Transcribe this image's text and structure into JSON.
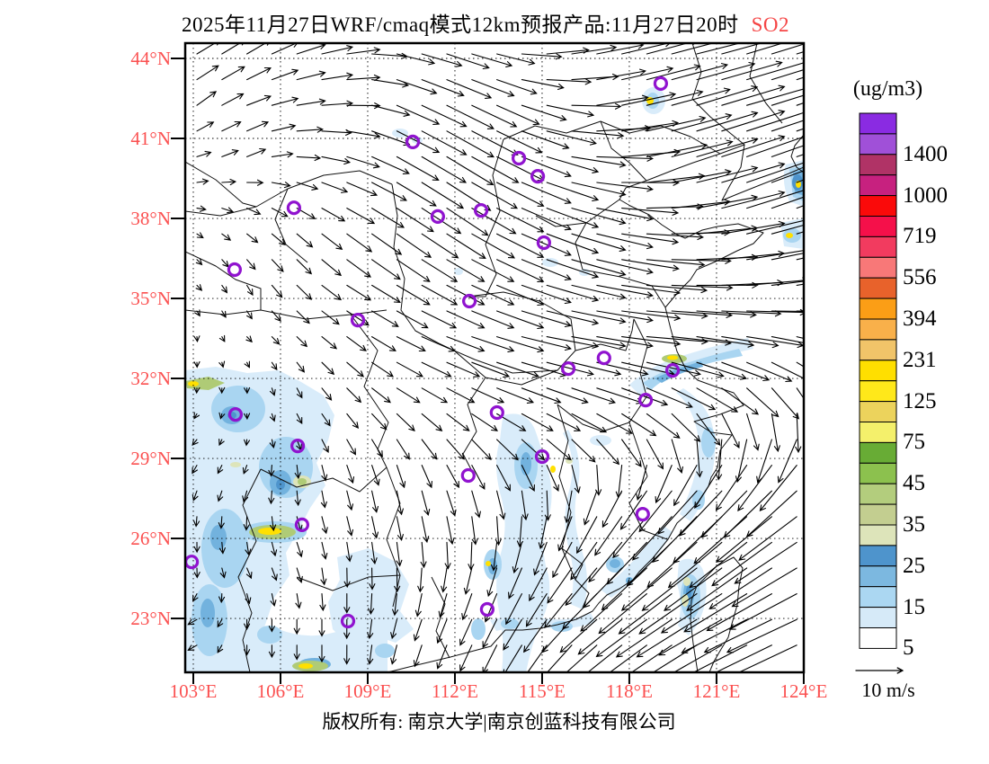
{
  "title": {
    "main": "2025年11月27日WRF/cmaq模式12km预报产品:11月27日20时",
    "pollutant": "SO2"
  },
  "colorbar": {
    "unit_label": "(ug/m3)",
    "tick_labels": [
      "1400",
      "1000",
      "719",
      "556",
      "394",
      "231",
      "125",
      "75",
      "45",
      "35",
      "25",
      "15",
      "5"
    ],
    "cell_colors_top_to_bottom": [
      "#8A2BE2",
      "#A050D8",
      "#B03366",
      "#C7217F",
      "#FA0A0A",
      "#F5104A",
      "#F23B5F",
      "#F87878",
      "#E8622B",
      "#FB9E16",
      "#F9B04A",
      "#F1C469",
      "#FFDF00",
      "#FFE81A",
      "#ECD35C",
      "#F4F06B",
      "#68AC35",
      "#8CC14E",
      "#B3CD7D",
      "#C3CE90",
      "#DDE4BA",
      "#4E94CC",
      "#7CB8E0",
      "#ABD7F2",
      "#D6EAF8",
      "#FFFFFF"
    ]
  },
  "axes": {
    "lat_ticks": [
      "44°N",
      "41°N",
      "38°N",
      "35°N",
      "32°N",
      "29°N",
      "26°N",
      "23°N"
    ],
    "lon_ticks": [
      "103°E",
      "106°E",
      "109°E",
      "112°E",
      "115°E",
      "118°E",
      "121°E",
      "124°E"
    ],
    "tick_label_color": "#fb5050"
  },
  "wind_legend": {
    "label": "10 m/s",
    "reference_speed_ms": 10
  },
  "footer": {
    "copyright": "版权所有: 南京大学|南京创蓝科技有限公司"
  },
  "chart_data": {
    "type": "heatmap",
    "subtype": "contour-vector-map",
    "pollutant": "SO2",
    "unit": "ug/m3",
    "title": "2025年11月27日WRF/cmaq模式12km预报产品:11月27日20时 SO2",
    "lon_domain": [
      103,
      124
    ],
    "lat_domain": [
      23,
      44
    ],
    "grid_interval_deg": 3,
    "contour_levels": [
      5,
      15,
      25,
      35,
      45,
      75,
      125,
      231,
      394,
      556,
      719,
      1000,
      1400
    ],
    "marker_color": "#9013CF",
    "station_markers_lonlat": [
      [
        119.08,
        43.06
      ],
      [
        110.55,
        40.87
      ],
      [
        114.2,
        40.26
      ],
      [
        114.85,
        39.58
      ],
      [
        106.46,
        38.4
      ],
      [
        111.41,
        38.07
      ],
      [
        112.9,
        38.3
      ],
      [
        115.06,
        37.09
      ],
      [
        104.42,
        36.08
      ],
      [
        112.5,
        34.9
      ],
      [
        108.66,
        34.19
      ],
      [
        115.9,
        32.37
      ],
      [
        117.13,
        32.77
      ],
      [
        119.49,
        32.3
      ],
      [
        118.56,
        31.19
      ],
      [
        104.45,
        30.65
      ],
      [
        113.45,
        30.72
      ],
      [
        106.59,
        29.47
      ],
      [
        115.0,
        29.07
      ],
      [
        112.46,
        28.36
      ],
      [
        118.46,
        26.91
      ],
      [
        106.74,
        26.51
      ],
      [
        102.94,
        25.12
      ],
      [
        108.32,
        22.9
      ],
      [
        113.11,
        23.34
      ]
    ],
    "wind_grid": {
      "lon_start": 103,
      "lat_start": 44,
      "step_deg": 1.75,
      "note": "rows from lat 44 down to 23; each entry [u,v] in m/s",
      "uv": [
        [
          [
            5,
            3
          ],
          [
            5,
            3
          ],
          [
            6,
            2
          ],
          [
            7,
            1
          ],
          [
            8,
            -2
          ],
          [
            9,
            -3
          ],
          [
            8,
            -2
          ],
          [
            9,
            1
          ],
          [
            10,
            2
          ],
          [
            11,
            3
          ],
          [
            12,
            3
          ],
          [
            13,
            4
          ],
          [
            13,
            4
          ]
        ],
        [
          [
            4,
            3
          ],
          [
            5,
            2
          ],
          [
            6,
            1
          ],
          [
            7,
            0
          ],
          [
            9,
            -4
          ],
          [
            10,
            -5
          ],
          [
            9,
            -4
          ],
          [
            10,
            -2
          ],
          [
            11,
            2
          ],
          [
            12,
            3
          ],
          [
            13,
            4
          ],
          [
            14,
            4
          ],
          [
            14,
            5
          ]
        ],
        [
          [
            3,
            1
          ],
          [
            4,
            2
          ],
          [
            5,
            0
          ],
          [
            7,
            -2
          ],
          [
            9,
            -5
          ],
          [
            10,
            -6
          ],
          [
            10,
            -5
          ],
          [
            11,
            -3
          ],
          [
            12,
            0
          ],
          [
            13,
            3
          ],
          [
            13,
            4
          ],
          [
            14,
            5
          ],
          [
            15,
            5
          ]
        ],
        [
          [
            2,
            0
          ],
          [
            3,
            -1
          ],
          [
            4,
            -2
          ],
          [
            6,
            -3
          ],
          [
            8,
            -5
          ],
          [
            9,
            -6
          ],
          [
            10,
            -5
          ],
          [
            11,
            -4
          ],
          [
            12,
            -2
          ],
          [
            12,
            1
          ],
          [
            13,
            3
          ],
          [
            14,
            5
          ],
          [
            15,
            6
          ]
        ],
        [
          [
            1,
            -1
          ],
          [
            2,
            -2
          ],
          [
            3,
            -3
          ],
          [
            5,
            -4
          ],
          [
            7,
            -5
          ],
          [
            8,
            -5
          ],
          [
            10,
            -5
          ],
          [
            11,
            -4
          ],
          [
            12,
            -3
          ],
          [
            12,
            -1
          ],
          [
            13,
            1
          ],
          [
            14,
            3
          ],
          [
            14,
            4
          ]
        ],
        [
          [
            1,
            -1
          ],
          [
            1,
            -2
          ],
          [
            3,
            -3
          ],
          [
            5,
            -3
          ],
          [
            7,
            -4
          ],
          [
            8,
            -4
          ],
          [
            10,
            -4
          ],
          [
            11,
            -3
          ],
          [
            12,
            -2
          ],
          [
            13,
            -1
          ],
          [
            13,
            0
          ],
          [
            13,
            1
          ],
          [
            13,
            2
          ]
        ],
        [
          [
            0,
            -1
          ],
          [
            1,
            -1
          ],
          [
            2,
            -2
          ],
          [
            4,
            -3
          ],
          [
            6,
            -3
          ],
          [
            8,
            -3
          ],
          [
            10,
            -3
          ],
          [
            11,
            -2
          ],
          [
            12,
            -2
          ],
          [
            13,
            -1
          ],
          [
            12,
            -2
          ],
          [
            12,
            -2
          ],
          [
            11,
            -3
          ]
        ],
        [
          [
            0,
            -1
          ],
          [
            0,
            -1
          ],
          [
            1,
            -2
          ],
          [
            3,
            -3
          ],
          [
            5,
            -3
          ],
          [
            6,
            -3
          ],
          [
            8,
            -3
          ],
          [
            9,
            -3
          ],
          [
            10,
            -3
          ],
          [
            10,
            -4
          ],
          [
            9,
            -5
          ],
          [
            7,
            -6
          ],
          [
            5,
            -7
          ]
        ],
        [
          [
            -1,
            -1
          ],
          [
            0,
            -1
          ],
          [
            1,
            -2
          ],
          [
            2,
            -3
          ],
          [
            3,
            -4
          ],
          [
            4,
            -4
          ],
          [
            5,
            -4
          ],
          [
            6,
            -4
          ],
          [
            6,
            -5
          ],
          [
            5,
            -6
          ],
          [
            2,
            -8
          ],
          [
            -1,
            -9
          ],
          [
            -3,
            -9
          ]
        ],
        [
          [
            -1,
            -2
          ],
          [
            -1,
            -2
          ],
          [
            0,
            -3
          ],
          [
            1,
            -4
          ],
          [
            1,
            -5
          ],
          [
            2,
            -5
          ],
          [
            2,
            -6
          ],
          [
            1,
            -6
          ],
          [
            -2,
            -7
          ],
          [
            -5,
            -8
          ],
          [
            -8,
            -9
          ],
          [
            -9,
            -10
          ],
          [
            -10,
            -10
          ]
        ],
        [
          [
            0,
            -2
          ],
          [
            0,
            -3
          ],
          [
            1,
            -3
          ],
          [
            1,
            -4
          ],
          [
            1,
            -5
          ],
          [
            1,
            -6
          ],
          [
            0,
            -6
          ],
          [
            -2,
            -7
          ],
          [
            -5,
            -8
          ],
          [
            -8,
            -9
          ],
          [
            -10,
            -10
          ],
          [
            -12,
            -10
          ],
          [
            -13,
            -9
          ]
        ],
        [
          [
            0,
            -2
          ],
          [
            1,
            -2
          ],
          [
            1,
            -3
          ],
          [
            0,
            -4
          ],
          [
            0,
            -5
          ],
          [
            -1,
            -5
          ],
          [
            -2,
            -6
          ],
          [
            -4,
            -7
          ],
          [
            -7,
            -8
          ],
          [
            -10,
            -9
          ],
          [
            -12,
            -9
          ],
          [
            -13,
            -9
          ],
          [
            -14,
            -8
          ]
        ],
        [
          [
            -2,
            -1
          ],
          [
            0,
            -2
          ],
          [
            0,
            -3
          ],
          [
            0,
            -4
          ],
          [
            -1,
            -4
          ],
          [
            -2,
            -5
          ],
          [
            -3,
            -6
          ],
          [
            -5,
            -7
          ],
          [
            -8,
            -7
          ],
          [
            -11,
            -8
          ],
          [
            -13,
            -8
          ],
          [
            -14,
            -7
          ],
          [
            -15,
            -7
          ]
        ]
      ]
    }
  }
}
